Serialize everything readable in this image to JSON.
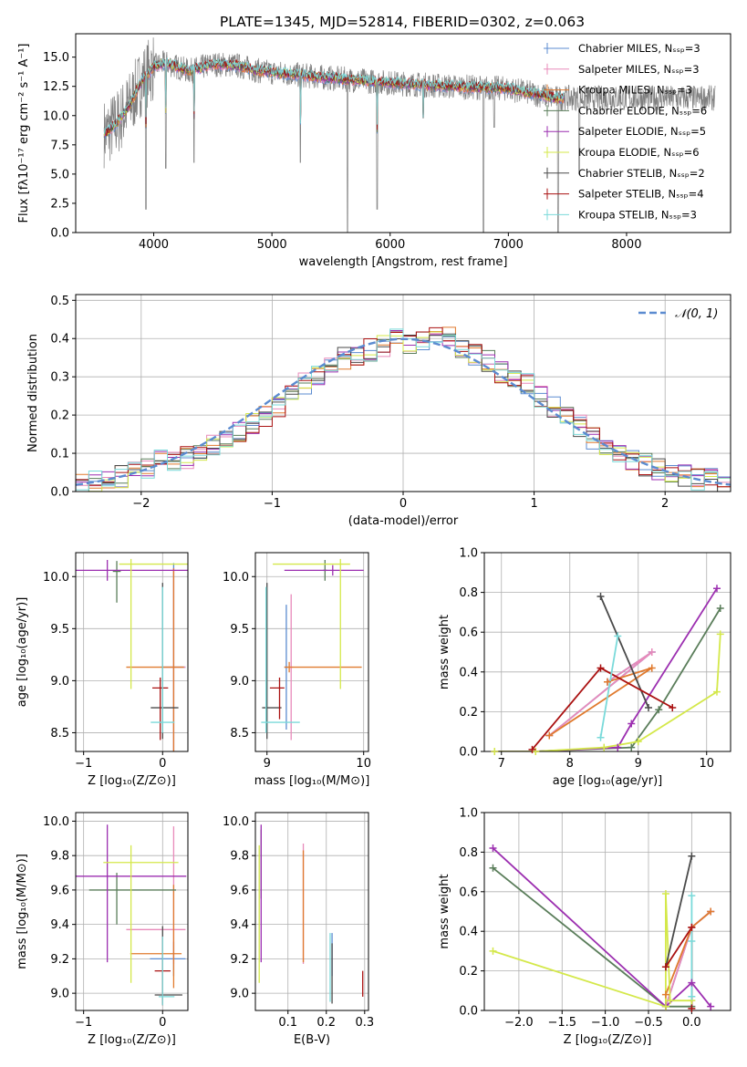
{
  "figure": {
    "suptitle": "PLATE=1345, MJD=52814, FIBERID=0302, z=0.063"
  },
  "palette": {
    "Chabrier MILES": "#5b8bd0",
    "Salpeter MILES": "#e88aba",
    "Kroupa MILES": "#e07a2e",
    "Chabrier ELODIE": "#5a7d5a",
    "Salpeter ELODIE": "#9c2fb0",
    "Kroupa ELODIE": "#d4e84a",
    "Chabrier STELIB": "#4a4a4a",
    "Salpeter STELIB": "#aa1111",
    "Kroupa STELIB": "#7adada",
    "data": "#7f7f7f",
    "gaussian": "#5b8bd0",
    "grid": "#b0b0b0"
  },
  "chart_data": [
    {
      "id": "spectrum",
      "type": "line",
      "xlabel": "wavelength [Angstrom, rest frame]",
      "ylabel": "Flux [fλ10⁻¹⁷ erg cm⁻² s⁻¹ A⁻¹]",
      "xlim": [
        3340,
        8880
      ],
      "ylim": [
        0,
        17
      ],
      "xticks": [
        4000,
        5000,
        6000,
        7000,
        8000
      ],
      "yticks": [
        0.0,
        2.5,
        5.0,
        7.5,
        10.0,
        12.5,
        15.0
      ],
      "grid": false,
      "legend_position": "top-right",
      "legend": [
        "Chabrier MILES, Nₛₛₚ=3",
        "Salpeter MILES, Nₛₛₚ=3",
        "Kroupa MILES, Nₛₛₚ=3",
        "Chabrier ELODIE, Nₛₛₚ=6",
        "Salpeter ELODIE, Nₛₛₚ=5",
        "Kroupa ELODIE, Nₛₛₚ=6",
        "Chabrier STELIB, Nₛₛₚ=2",
        "Salpeter STELIB, Nₛₛₚ=4",
        "Kroupa STELIB, Nₛₛₚ=3"
      ],
      "continuum": {
        "wavelength": [
          3600,
          3700,
          3800,
          3900,
          4000,
          4100,
          4300,
          4500,
          4700,
          4900,
          5100,
          5500,
          6000,
          6500,
          7000,
          7400
        ],
        "flux": [
          8.5,
          9.5,
          11.0,
          13.0,
          14.2,
          14.5,
          13.8,
          14.4,
          14.3,
          13.8,
          13.6,
          13.2,
          12.8,
          12.5,
          12.3,
          11.5
        ]
      },
      "data_extent": [
        3580,
        8750
      ],
      "absorption_dips": [
        {
          "wavelength": 3934,
          "flux": 2.0
        },
        {
          "wavelength": 4340,
          "flux": 6.0
        },
        {
          "wavelength": 4102,
          "flux": 5.5
        },
        {
          "wavelength": 5890,
          "flux": 2.0
        },
        {
          "wavelength": 5240,
          "flux": 6.0
        },
        {
          "wavelength": 6280,
          "flux": 9.8
        },
        {
          "wavelength": 6880,
          "flux": 9.0
        },
        {
          "wavelength": 7600,
          "flux": 5.0
        },
        {
          "wavelength": 5640,
          "flux": 0.0
        },
        {
          "wavelength": 6790,
          "flux": 0.0
        },
        {
          "wavelength": 7420,
          "flux": 0.0
        }
      ]
    },
    {
      "id": "residuals",
      "type": "line",
      "xlabel": "(data-model)/error",
      "ylabel": "Normed distribution",
      "xlim": [
        -2.5,
        2.5
      ],
      "ylim": [
        0,
        0.515
      ],
      "xticks": [
        -2,
        -1,
        0,
        1,
        2
      ],
      "yticks": [
        0.0,
        0.1,
        0.2,
        0.3,
        0.4,
        0.5
      ],
      "grid": true,
      "legend_position": "top-right",
      "legend": [
        "𝒩(0, 1)"
      ],
      "bin_edges_start": -2.5,
      "bin_width": 0.1,
      "base_histogram": [
        0.02,
        0.03,
        0.03,
        0.04,
        0.05,
        0.06,
        0.08,
        0.08,
        0.09,
        0.1,
        0.12,
        0.14,
        0.16,
        0.18,
        0.2,
        0.22,
        0.25,
        0.28,
        0.3,
        0.33,
        0.35,
        0.36,
        0.37,
        0.38,
        0.4,
        0.39,
        0.4,
        0.41,
        0.4,
        0.38,
        0.36,
        0.34,
        0.31,
        0.29,
        0.28,
        0.25,
        0.22,
        0.19,
        0.17,
        0.14,
        0.12,
        0.1,
        0.08,
        0.07,
        0.06,
        0.05,
        0.04,
        0.03,
        0.03,
        0.02
      ]
    },
    {
      "id": "age-vs-Z",
      "type": "scatter",
      "xlabel": "Z [log₁₀(Z/Z⊙)]",
      "ylabel": "age  [log₁₀(age/yr)]",
      "xlim": [
        -1.1,
        0.32
      ],
      "ylim": [
        8.32,
        10.23
      ],
      "xticks": [
        -1,
        0
      ],
      "yticks": [
        8.5,
        9.0,
        9.5,
        10.0
      ],
      "grid": true,
      "points": [
        {
          "model": "Chabrier MILES",
          "x": 0.14,
          "y": 9.13,
          "xerr": [
            0.15,
            0.15
          ],
          "yerr": [
            1.0,
            1.0
          ]
        },
        {
          "model": "Salpeter MILES",
          "x": 0.14,
          "y": 9.13,
          "xerr": [
            0.15,
            0.15
          ],
          "yerr": [
            0.95,
            0.95
          ]
        },
        {
          "model": "Kroupa MILES",
          "x": 0.14,
          "y": 9.13,
          "xerr": [
            0.6,
            0.13
          ],
          "yerr": [
            0.95,
            0.95
          ]
        },
        {
          "model": "Chabrier ELODIE",
          "x": -0.58,
          "y": 10.05,
          "xerr": [
            0.05,
            0.05
          ],
          "yerr": [
            0.3,
            0.1
          ]
        },
        {
          "model": "Salpeter ELODIE",
          "x": -0.7,
          "y": 10.06,
          "xerr": [
            0.4,
            1.1
          ],
          "yerr": [
            0.1,
            0.1
          ]
        },
        {
          "model": "Kroupa ELODIE",
          "x": -0.4,
          "y": 10.12,
          "xerr": [
            0.15,
            0.75
          ],
          "yerr": [
            1.2,
            0.05
          ]
        },
        {
          "model": "Chabrier STELIB",
          "x": 0.0,
          "y": 8.74,
          "xerr": [
            0.15,
            0.2
          ],
          "yerr": [
            0.3,
            1.2
          ]
        },
        {
          "model": "Salpeter STELIB",
          "x": -0.03,
          "y": 8.93,
          "xerr": [
            0.1,
            0.1
          ],
          "yerr": [
            0.5,
            0.1
          ]
        },
        {
          "model": "Kroupa STELIB",
          "x": 0.0,
          "y": 8.6,
          "xerr": [
            0.15,
            0.15
          ],
          "yerr": [
            0.1,
            1.3
          ]
        }
      ]
    },
    {
      "id": "age-vs-mass",
      "type": "scatter",
      "xlabel": "mass [log₁₀(M/M⊙)]",
      "ylabel": "",
      "xlim": [
        8.88,
        10.05
      ],
      "ylim": [
        8.32,
        10.23
      ],
      "xticks": [
        9,
        10
      ],
      "yticks": [
        8.5,
        9.0,
        9.5,
        10.0
      ],
      "grid": true,
      "points": [
        {
          "model": "Chabrier MILES",
          "x": 9.2,
          "y": 9.13,
          "xerr": [
            0.02,
            0.02
          ],
          "yerr": [
            0.6,
            0.6
          ]
        },
        {
          "model": "Salpeter MILES",
          "x": 9.25,
          "y": 9.13,
          "xerr": [
            0.02,
            0.02
          ],
          "yerr": [
            0.7,
            0.7
          ]
        },
        {
          "model": "Kroupa MILES",
          "x": 9.23,
          "y": 9.13,
          "xerr": [
            0.05,
            0.75
          ],
          "yerr": [
            0.05,
            0.05
          ]
        },
        {
          "model": "Chabrier ELODIE",
          "x": 9.6,
          "y": 10.06,
          "xerr": [
            0.02,
            0.02
          ],
          "yerr": [
            0.1,
            0.1
          ]
        },
        {
          "model": "Salpeter ELODIE",
          "x": 9.68,
          "y": 10.06,
          "xerr": [
            0.5,
            0.32
          ],
          "yerr": [
            0.05,
            0.05
          ]
        },
        {
          "model": "Kroupa ELODIE",
          "x": 9.76,
          "y": 10.12,
          "xerr": [
            0.7,
            0.1
          ],
          "yerr": [
            1.2,
            0.05
          ]
        },
        {
          "model": "Chabrier STELIB",
          "x": 9.0,
          "y": 8.74,
          "xerr": [
            0.05,
            0.15
          ],
          "yerr": [
            0.3,
            1.2
          ]
        },
        {
          "model": "Salpeter STELIB",
          "x": 9.13,
          "y": 8.93,
          "xerr": [
            0.1,
            0.05
          ],
          "yerr": [
            0.3,
            0.1
          ]
        },
        {
          "model": "Kroupa STELIB",
          "x": 8.99,
          "y": 8.6,
          "xerr": [
            0.05,
            0.35
          ],
          "yerr": [
            0.1,
            1.3
          ]
        }
      ]
    },
    {
      "id": "weight-vs-age",
      "type": "line",
      "xlabel": "age  [log₁₀(age/yr)]",
      "ylabel": "mass weight",
      "xlim": [
        6.75,
        10.35
      ],
      "ylim": [
        0,
        1.0
      ],
      "xticks": [
        7,
        8,
        9,
        10
      ],
      "yticks": [
        0.0,
        0.2,
        0.4,
        0.6,
        0.8,
        1.0
      ],
      "grid": true,
      "series": [
        {
          "model": "Chabrier MILES",
          "x": [
            7.7,
            9.2,
            8.55
          ],
          "y": [
            0.08,
            0.5,
            0.35
          ]
        },
        {
          "model": "Salpeter MILES",
          "x": [
            7.7,
            9.2,
            8.55
          ],
          "y": [
            0.08,
            0.5,
            0.35
          ]
        },
        {
          "model": "Kroupa MILES",
          "x": [
            7.7,
            9.2,
            8.55
          ],
          "y": [
            0.08,
            0.42,
            0.35
          ]
        },
        {
          "model": "Chabrier ELODIE",
          "x": [
            6.9,
            7.5,
            8.9,
            9.3,
            10.2
          ],
          "y": [
            0.0,
            0.0,
            0.02,
            0.21,
            0.72
          ]
        },
        {
          "model": "Salpeter ELODIE",
          "x": [
            6.9,
            7.5,
            8.7,
            8.9,
            10.15
          ],
          "y": [
            0.0,
            0.0,
            0.02,
            0.14,
            0.82
          ]
        },
        {
          "model": "Kroupa ELODIE",
          "x": [
            6.9,
            7.5,
            8.5,
            9.0,
            10.15,
            10.2
          ],
          "y": [
            0.0,
            0.0,
            0.02,
            0.05,
            0.3,
            0.59
          ]
        },
        {
          "model": "Chabrier STELIB",
          "x": [
            8.45,
            9.15
          ],
          "y": [
            0.78,
            0.22
          ]
        },
        {
          "model": "Salpeter STELIB",
          "x": [
            7.45,
            8.45,
            9.5
          ],
          "y": [
            0.01,
            0.42,
            0.22
          ]
        },
        {
          "model": "Kroupa STELIB",
          "x": [
            8.45,
            8.7
          ],
          "y": [
            0.07,
            0.58
          ]
        }
      ]
    },
    {
      "id": "mass-vs-Z",
      "type": "scatter",
      "xlabel": "Z [log₁₀(Z/Z⊙)]",
      "ylabel": "mass [log₁₀(M/M⊙)]",
      "xlim": [
        -1.1,
        0.32
      ],
      "ylim": [
        8.9,
        10.05
      ],
      "xticks": [
        -1,
        0
      ],
      "yticks": [
        9.0,
        9.2,
        9.4,
        9.6,
        9.8,
        10.0
      ],
      "grid": true,
      "points": [
        {
          "model": "Chabrier MILES",
          "x": 0.14,
          "y": 9.2,
          "xerr": [
            0.3,
            0.15
          ],
          "yerr": [
            0.1,
            0.1
          ]
        },
        {
          "model": "Salpeter MILES",
          "x": 0.14,
          "y": 9.37,
          "xerr": [
            0.6,
            0.15
          ],
          "yerr": [
            0.2,
            0.6
          ]
        },
        {
          "model": "Kroupa MILES",
          "x": 0.14,
          "y": 9.23,
          "xerr": [
            0.55,
            0.1
          ],
          "yerr": [
            0.2,
            0.4
          ]
        },
        {
          "model": "Chabrier ELODIE",
          "x": -0.58,
          "y": 9.6,
          "xerr": [
            0.35,
            0.75
          ],
          "yerr": [
            0.2,
            0.1
          ]
        },
        {
          "model": "Salpeter ELODIE",
          "x": -0.7,
          "y": 9.68,
          "xerr": [
            0.4,
            1.0
          ],
          "yerr": [
            0.5,
            0.3
          ]
        },
        {
          "model": "Kroupa ELODIE",
          "x": -0.4,
          "y": 9.76,
          "xerr": [
            0.35,
            0.6
          ],
          "yerr": [
            0.7,
            0.1
          ]
        },
        {
          "model": "Chabrier STELIB",
          "x": 0.0,
          "y": 8.99,
          "xerr": [
            0.1,
            0.25
          ],
          "yerr": [
            0.05,
            0.4
          ]
        },
        {
          "model": "Salpeter STELIB",
          "x": 0.0,
          "y": 9.13,
          "xerr": [
            0.1,
            0.1
          ],
          "yerr": [
            0.2,
            0.2
          ]
        },
        {
          "model": "Kroupa STELIB",
          "x": 0.0,
          "y": 8.98,
          "xerr": [
            0.05,
            0.15
          ],
          "yerr": [
            0.05,
            0.35
          ]
        }
      ]
    },
    {
      "id": "mass-vs-ebv",
      "type": "scatter",
      "xlabel": "E(B-V)",
      "ylabel": "",
      "xlim": [
        0.015,
        0.31
      ],
      "ylim": [
        8.9,
        10.05
      ],
      "xticks": [
        0.1,
        0.2,
        0.3
      ],
      "yticks": [
        9.0,
        9.2,
        9.4,
        9.6,
        9.8,
        10.0
      ],
      "grid": true,
      "points": [
        {
          "model": "Chabrier MILES",
          "x": 0.215,
          "y": 9.2,
          "xerr": [
            0.0,
            0.0
          ],
          "yerr": [
            0.1,
            0.15
          ]
        },
        {
          "model": "Salpeter MILES",
          "x": 0.14,
          "y": 9.37,
          "xerr": [
            0.0,
            0.0
          ],
          "yerr": [
            0.2,
            0.5
          ]
        },
        {
          "model": "Kroupa MILES",
          "x": 0.14,
          "y": 9.23,
          "xerr": [
            0.0,
            0.0
          ],
          "yerr": [
            0.05,
            0.6
          ]
        },
        {
          "model": "Chabrier ELODIE",
          "x": 0.03,
          "y": 9.6,
          "xerr": [
            0.0,
            0.0
          ],
          "yerr": [
            0.05,
            0.35
          ]
        },
        {
          "model": "Salpeter ELODIE",
          "x": 0.03,
          "y": 9.68,
          "xerr": [
            0.0,
            0.0
          ],
          "yerr": [
            0.5,
            0.3
          ]
        },
        {
          "model": "Kroupa ELODIE",
          "x": 0.025,
          "y": 9.76,
          "xerr": [
            0.0,
            0.0
          ],
          "yerr": [
            0.7,
            0.1
          ]
        },
        {
          "model": "Chabrier STELIB",
          "x": 0.215,
          "y": 8.99,
          "xerr": [
            0.0,
            0.0
          ],
          "yerr": [
            0.05,
            0.3
          ]
        },
        {
          "model": "Salpeter STELIB",
          "x": 0.295,
          "y": 9.05,
          "xerr": [
            0.0,
            0.0
          ],
          "yerr": [
            0.07,
            0.08
          ]
        },
        {
          "model": "Kroupa STELIB",
          "x": 0.21,
          "y": 9.0,
          "xerr": [
            0.0,
            0.0
          ],
          "yerr": [
            0.05,
            0.35
          ]
        }
      ]
    },
    {
      "id": "weight-vs-Z",
      "type": "line",
      "xlabel": "Z [log₁₀(Z/Z⊙)]",
      "ylabel": "mass weight",
      "xlim": [
        -2.4,
        0.45
      ],
      "ylim": [
        0,
        1.0
      ],
      "xticks": [
        -2.0,
        -1.5,
        -1.0,
        -0.5,
        0.0
      ],
      "xticklabels": [
        "−2.0",
        "−1.5",
        "−1.0",
        "−0.5",
        "0.0"
      ],
      "yticks": [
        0.0,
        0.2,
        0.4,
        0.6,
        0.8,
        1.0
      ],
      "grid": true,
      "series": [
        {
          "model": "Chabrier MILES",
          "x": [
            -0.3,
            0.0,
            0.22
          ],
          "y": [
            0.02,
            0.42,
            0.5
          ]
        },
        {
          "model": "Salpeter MILES",
          "x": [
            -0.3,
            0.0,
            0.22
          ],
          "y": [
            0.02,
            0.42,
            0.5
          ]
        },
        {
          "model": "Kroupa MILES",
          "x": [
            -0.3,
            0.0,
            0.22
          ],
          "y": [
            0.08,
            0.42,
            0.5
          ]
        },
        {
          "model": "Chabrier ELODIE",
          "x": [
            -2.3,
            -0.3,
            0.0
          ],
          "y": [
            0.72,
            0.02,
            0.02
          ]
        },
        {
          "model": "Salpeter ELODIE",
          "x": [
            -2.3,
            -0.3,
            0.0,
            0.22
          ],
          "y": [
            0.82,
            0.02,
            0.14,
            0.02
          ]
        },
        {
          "model": "Kroupa ELODIE",
          "x": [
            -2.3,
            -0.3,
            -0.3,
            -0.25,
            0.0
          ],
          "y": [
            0.3,
            0.02,
            0.59,
            0.05,
            0.05
          ]
        },
        {
          "model": "Chabrier STELIB",
          "x": [
            -0.3,
            0.0
          ],
          "y": [
            0.22,
            0.78
          ]
        },
        {
          "model": "Salpeter STELIB",
          "x": [
            -0.3,
            0.0,
            0.0
          ],
          "y": [
            0.22,
            0.42,
            0.01
          ]
        },
        {
          "model": "Kroupa STELIB",
          "x": [
            0.0,
            0.0,
            0.0
          ],
          "y": [
            0.07,
            0.58,
            0.35
          ]
        }
      ]
    }
  ]
}
